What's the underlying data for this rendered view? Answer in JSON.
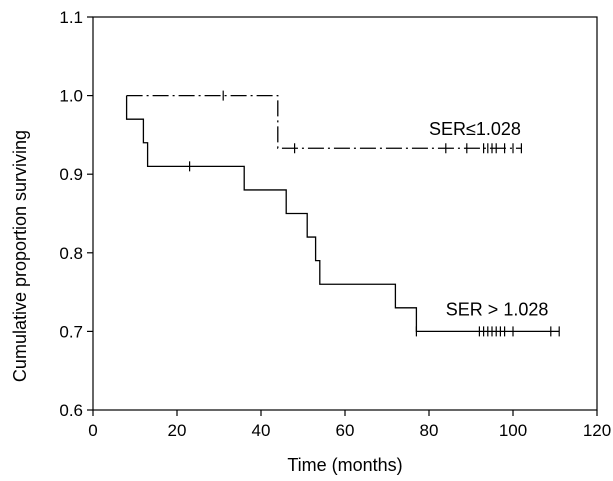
{
  "chart_data": {
    "type": "line",
    "title": "",
    "xlabel": "Time (months)",
    "ylabel": "Cumulative proportion surviving",
    "xlim": [
      0,
      120
    ],
    "ylim": [
      0.6,
      1.1
    ],
    "x_ticks": [
      0,
      20,
      40,
      60,
      80,
      100,
      120
    ],
    "y_ticks": [
      "0.6",
      "0.7",
      "0.8",
      "0.9",
      "1.0",
      "1.1"
    ],
    "grid": false,
    "legend": "none",
    "series": [
      {
        "name": "SER ≤ 1.028",
        "style": "dash-dot",
        "color": "#000000",
        "steps": [
          [
            8,
            1.0
          ],
          [
            44,
            1.0
          ],
          [
            44,
            0.933
          ],
          [
            102,
            0.933
          ]
        ],
        "censored": [
          31,
          48,
          84,
          89,
          93,
          94,
          95,
          96,
          98,
          100,
          102
        ]
      },
      {
        "name": "SER > 1.028",
        "style": "solid",
        "color": "#000000",
        "steps": [
          [
            8,
            1.0
          ],
          [
            8,
            0.97
          ],
          [
            12,
            0.97
          ],
          [
            12,
            0.94
          ],
          [
            13,
            0.94
          ],
          [
            13,
            0.91
          ],
          [
            36,
            0.91
          ],
          [
            36,
            0.88
          ],
          [
            46,
            0.88
          ],
          [
            46,
            0.85
          ],
          [
            51,
            0.85
          ],
          [
            51,
            0.82
          ],
          [
            53,
            0.82
          ],
          [
            53,
            0.79
          ],
          [
            54,
            0.79
          ],
          [
            54,
            0.76
          ],
          [
            72,
            0.76
          ],
          [
            72,
            0.73
          ],
          [
            77,
            0.73
          ],
          [
            77,
            0.7
          ],
          [
            111,
            0.7
          ]
        ],
        "censored": [
          23,
          77,
          92,
          93,
          94,
          95,
          96,
          97,
          98,
          100,
          109,
          111
        ]
      }
    ],
    "annotations": [
      {
        "text": "SER≤1.028",
        "x": 80,
        "y": 0.95
      },
      {
        "text": "SER > 1.028",
        "x": 84,
        "y": 0.72
      }
    ]
  }
}
